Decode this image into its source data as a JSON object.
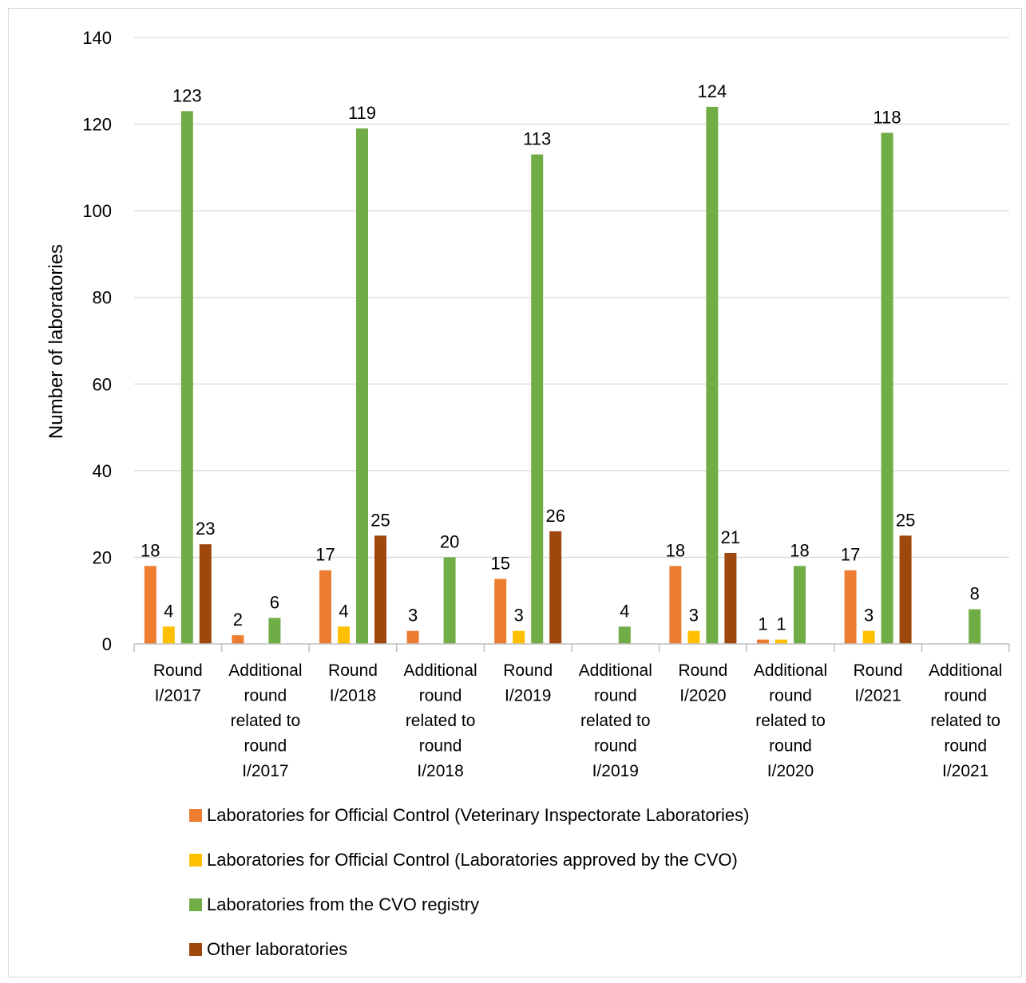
{
  "chart_data": {
    "type": "bar",
    "title": "",
    "xlabel": "",
    "ylabel": "Number of laboratories",
    "ylim": [
      0,
      140
    ],
    "yticks": [
      0,
      20,
      40,
      60,
      80,
      100,
      120,
      140
    ],
    "grid": true,
    "legend_position": "bottom",
    "categories": [
      [
        "Round",
        "I/2017"
      ],
      [
        "Additional",
        "round",
        "related to",
        "round",
        "I/2017"
      ],
      [
        "Round",
        "I/2018"
      ],
      [
        "Additional",
        "round",
        "related to",
        "round",
        "I/2018"
      ],
      [
        "Round",
        "I/2019"
      ],
      [
        "Additional",
        "round",
        "related to",
        "round",
        "I/2019"
      ],
      [
        "Round",
        "I/2020"
      ],
      [
        "Additional",
        "round",
        "related to",
        "round",
        "I/2020"
      ],
      [
        "Round",
        "I/2021"
      ],
      [
        "Additional",
        "round",
        "related to",
        "round",
        "I/2021"
      ]
    ],
    "series": [
      {
        "name": "Laboratories for Official Control (Veterinary Inspectorate Laboratories)",
        "color": "#ED7D31",
        "values": [
          18,
          2,
          17,
          3,
          15,
          null,
          18,
          1,
          17,
          null
        ]
      },
      {
        "name": "Laboratories for Official Control (Laboratories approved by the CVO)",
        "color": "#FFC000",
        "values": [
          4,
          null,
          4,
          null,
          3,
          null,
          3,
          1,
          3,
          null
        ]
      },
      {
        "name": "Laboratories from the CVO registry",
        "color": "#70AD47",
        "values": [
          123,
          6,
          119,
          20,
          113,
          4,
          124,
          18,
          118,
          8
        ]
      },
      {
        "name": "Other laboratories",
        "color": "#9E480E",
        "values": [
          23,
          null,
          25,
          null,
          26,
          null,
          21,
          null,
          25,
          null
        ]
      }
    ]
  },
  "colors": {
    "grid": "#d9d9d9",
    "axis": "#bfbfbf"
  }
}
